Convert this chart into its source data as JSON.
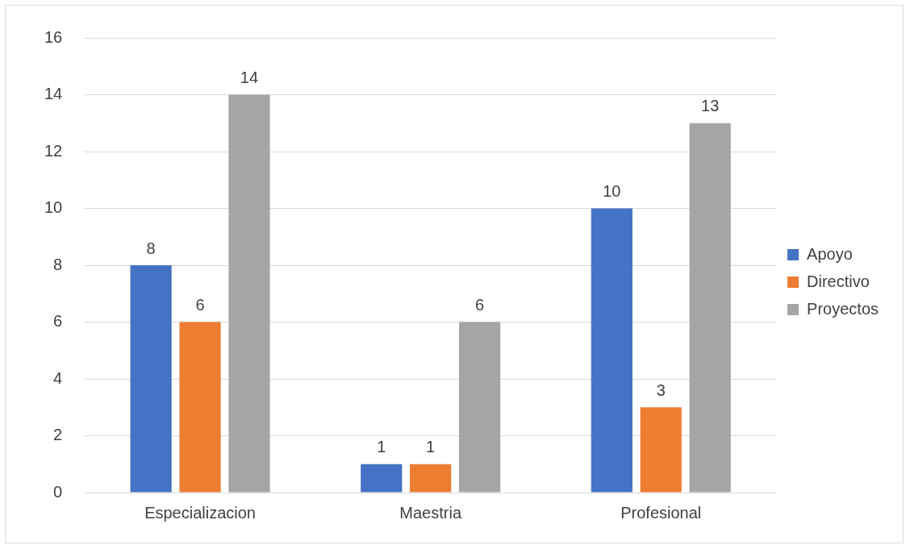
{
  "chart_data": {
    "type": "bar",
    "categories": [
      "Especializacion",
      "Maestria",
      "Profesional"
    ],
    "series": [
      {
        "name": "Apoyo",
        "color": "#4472c4",
        "values": [
          8,
          1,
          10
        ]
      },
      {
        "name": "Directivo",
        "color": "#ed7d31",
        "values": [
          6,
          1,
          3
        ]
      },
      {
        "name": "Proyectos",
        "color": "#a5a5a5",
        "values": [
          14,
          6,
          13
        ]
      }
    ],
    "ylim": [
      0,
      16
    ],
    "yticks": [
      0,
      2,
      4,
      6,
      8,
      10,
      12,
      14,
      16
    ],
    "grid": "y",
    "legend": "right",
    "data_labels": true
  }
}
